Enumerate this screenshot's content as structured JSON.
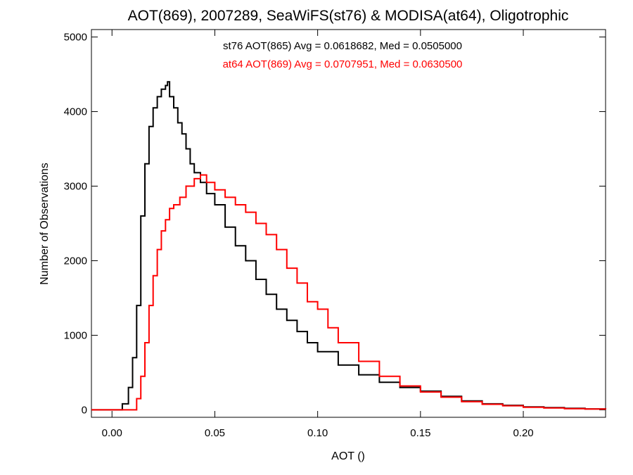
{
  "chart_data": {
    "type": "line",
    "title": "AOT(869), 2007289, SeaWiFS(st76) & MODISA(at64), Oligotrophic",
    "xlabel": "AOT ()",
    "ylabel": "Number of Observations",
    "xlim": [
      -0.01,
      0.24
    ],
    "ylim": [
      -100,
      5100
    ],
    "x_ticks": [
      0.0,
      0.05,
      0.1,
      0.15,
      0.2
    ],
    "x_tick_labels": [
      "0.00",
      "0.05",
      "0.10",
      "0.15",
      "0.20"
    ],
    "y_ticks": [
      0,
      1000,
      2000,
      3000,
      4000,
      5000
    ],
    "y_tick_labels": [
      "0",
      "1000",
      "2000",
      "3000",
      "4000",
      "5000"
    ],
    "grid": false,
    "step_style": "histogram",
    "annotations": [
      {
        "text": "st76 AOT(865) Avg = 0.0618682, Med = 0.0505000",
        "color": "#000000"
      },
      {
        "text": "at64 AOT(869) Avg = 0.0707951, Med = 0.0630500",
        "color": "#ff0000"
      }
    ],
    "series": [
      {
        "color": "#000000",
        "x": [
          -0.01,
          0.0,
          0.005,
          0.008,
          0.01,
          0.012,
          0.014,
          0.016,
          0.018,
          0.02,
          0.022,
          0.024,
          0.026,
          0.027,
          0.028,
          0.03,
          0.032,
          0.034,
          0.036,
          0.038,
          0.04,
          0.043,
          0.046,
          0.05,
          0.055,
          0.06,
          0.065,
          0.07,
          0.075,
          0.08,
          0.085,
          0.09,
          0.095,
          0.1,
          0.11,
          0.12,
          0.13,
          0.14,
          0.15,
          0.16,
          0.17,
          0.18,
          0.19,
          0.2,
          0.21,
          0.22,
          0.23,
          0.24
        ],
        "y": [
          0,
          0,
          80,
          300,
          700,
          1400,
          2600,
          3300,
          3800,
          4050,
          4200,
          4300,
          4350,
          4400,
          4200,
          4050,
          3850,
          3700,
          3500,
          3300,
          3180,
          3050,
          2900,
          2750,
          2450,
          2200,
          2000,
          1750,
          1550,
          1350,
          1200,
          1050,
          900,
          780,
          600,
          470,
          370,
          300,
          250,
          180,
          120,
          80,
          60,
          40,
          30,
          20,
          12,
          8
        ]
      },
      {
        "color": "#ff0000",
        "x": [
          -0.01,
          0.0,
          0.01,
          0.012,
          0.014,
          0.016,
          0.018,
          0.02,
          0.022,
          0.024,
          0.026,
          0.028,
          0.03,
          0.033,
          0.036,
          0.04,
          0.043,
          0.046,
          0.05,
          0.055,
          0.06,
          0.065,
          0.07,
          0.075,
          0.08,
          0.085,
          0.09,
          0.095,
          0.1,
          0.105,
          0.11,
          0.12,
          0.13,
          0.14,
          0.15,
          0.16,
          0.17,
          0.18,
          0.19,
          0.2,
          0.21,
          0.22,
          0.23,
          0.24
        ],
        "y": [
          0,
          0,
          0,
          150,
          450,
          900,
          1400,
          1800,
          2150,
          2400,
          2550,
          2700,
          2750,
          2850,
          3000,
          3100,
          3150,
          3050,
          2950,
          2850,
          2750,
          2650,
          2500,
          2350,
          2150,
          1900,
          1700,
          1450,
          1350,
          1100,
          900,
          650,
          450,
          320,
          240,
          170,
          110,
          75,
          55,
          35,
          25,
          15,
          10,
          5
        ]
      }
    ]
  }
}
